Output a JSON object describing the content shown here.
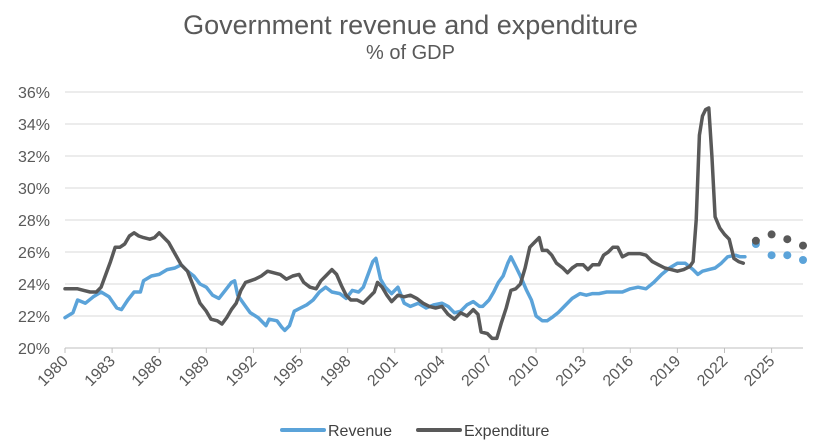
{
  "chart_data": {
    "type": "line",
    "title": "Government revenue and expenditure",
    "subtitle": "% of GDP",
    "xlabel": "",
    "ylabel": "",
    "xlim": [
      1980,
      2027
    ],
    "ylim": [
      20,
      36
    ],
    "x_ticks": [
      "1980",
      "1983",
      "1986",
      "1989",
      "1992",
      "1995",
      "1998",
      "2001",
      "2004",
      "2007",
      "2010",
      "2013",
      "2016",
      "2019",
      "2022",
      "2025"
    ],
    "y_ticks": [
      "20%",
      "22%",
      "24%",
      "26%",
      "28%",
      "30%",
      "32%",
      "34%",
      "36%"
    ],
    "grid": "horizontal",
    "legend_position": "bottom",
    "series": [
      {
        "name": "Revenue",
        "color": "#5ba3d9",
        "points": [
          [
            1980,
            21.9
          ],
          [
            1980.5,
            22.2
          ],
          [
            1980.8,
            23.0
          ],
          [
            1981.3,
            22.8
          ],
          [
            1981.8,
            23.2
          ],
          [
            1982.3,
            23.5
          ],
          [
            1982.8,
            23.2
          ],
          [
            1983.3,
            22.5
          ],
          [
            1983.6,
            22.4
          ],
          [
            1984.0,
            23.0
          ],
          [
            1984.4,
            23.5
          ],
          [
            1984.8,
            23.5
          ],
          [
            1985.0,
            24.2
          ],
          [
            1985.5,
            24.5
          ],
          [
            1986.0,
            24.6
          ],
          [
            1986.5,
            24.9
          ],
          [
            1987.0,
            25.0
          ],
          [
            1987.4,
            25.2
          ],
          [
            1987.8,
            24.8
          ],
          [
            1988.2,
            24.5
          ],
          [
            1988.6,
            24.0
          ],
          [
            1989.0,
            23.8
          ],
          [
            1989.4,
            23.3
          ],
          [
            1989.8,
            23.1
          ],
          [
            1990.2,
            23.6
          ],
          [
            1990.6,
            24.1
          ],
          [
            1990.8,
            24.2
          ],
          [
            1991.0,
            23.3
          ],
          [
            1991.5,
            22.6
          ],
          [
            1991.8,
            22.2
          ],
          [
            1992.3,
            21.9
          ],
          [
            1992.8,
            21.4
          ],
          [
            1993.0,
            21.8
          ],
          [
            1993.5,
            21.7
          ],
          [
            1993.8,
            21.3
          ],
          [
            1994.0,
            21.1
          ],
          [
            1994.3,
            21.4
          ],
          [
            1994.6,
            22.3
          ],
          [
            1995.0,
            22.5
          ],
          [
            1995.4,
            22.7
          ],
          [
            1995.8,
            23.0
          ],
          [
            1996.2,
            23.5
          ],
          [
            1996.6,
            23.8
          ],
          [
            1997.0,
            23.5
          ],
          [
            1997.5,
            23.4
          ],
          [
            1997.9,
            23.1
          ],
          [
            1998.3,
            23.6
          ],
          [
            1998.7,
            23.5
          ],
          [
            1999.0,
            23.8
          ],
          [
            1999.3,
            24.6
          ],
          [
            1999.6,
            25.4
          ],
          [
            1999.8,
            25.6
          ],
          [
            2000.1,
            24.3
          ],
          [
            2000.4,
            23.8
          ],
          [
            2000.8,
            23.4
          ],
          [
            2001.2,
            23.8
          ],
          [
            2001.6,
            22.8
          ],
          [
            2002.0,
            22.6
          ],
          [
            2002.5,
            22.8
          ],
          [
            2003.0,
            22.5
          ],
          [
            2003.5,
            22.7
          ],
          [
            2004.0,
            22.8
          ],
          [
            2004.4,
            22.6
          ],
          [
            2004.8,
            22.2
          ],
          [
            2005.2,
            22.3
          ],
          [
            2005.6,
            22.7
          ],
          [
            2006.0,
            22.9
          ],
          [
            2006.4,
            22.6
          ],
          [
            2006.6,
            22.6
          ],
          [
            2007.0,
            23.0
          ],
          [
            2007.3,
            23.5
          ],
          [
            2007.6,
            24.1
          ],
          [
            2007.9,
            24.5
          ],
          [
            2008.2,
            25.3
          ],
          [
            2008.4,
            25.7
          ],
          [
            2008.7,
            25.1
          ],
          [
            2009.0,
            24.5
          ],
          [
            2009.4,
            23.6
          ],
          [
            2009.7,
            23.0
          ],
          [
            2010.0,
            22.0
          ],
          [
            2010.4,
            21.7
          ],
          [
            2010.7,
            21.7
          ],
          [
            2011.0,
            21.9
          ],
          [
            2011.4,
            22.2
          ],
          [
            2011.8,
            22.6
          ],
          [
            2012.3,
            23.1
          ],
          [
            2012.8,
            23.4
          ],
          [
            2013.2,
            23.3
          ],
          [
            2013.6,
            23.4
          ],
          [
            2014.0,
            23.4
          ],
          [
            2014.5,
            23.5
          ],
          [
            2015.0,
            23.5
          ],
          [
            2015.5,
            23.5
          ],
          [
            2016.0,
            23.7
          ],
          [
            2016.5,
            23.8
          ],
          [
            2017.0,
            23.7
          ],
          [
            2017.5,
            24.1
          ],
          [
            2018.0,
            24.6
          ],
          [
            2018.5,
            25.0
          ],
          [
            2019.0,
            25.3
          ],
          [
            2019.5,
            25.3
          ],
          [
            2020.0,
            24.9
          ],
          [
            2020.3,
            24.6
          ],
          [
            2020.6,
            24.8
          ],
          [
            2021.0,
            24.9
          ],
          [
            2021.4,
            25.0
          ],
          [
            2021.8,
            25.3
          ],
          [
            2022.2,
            25.7
          ],
          [
            2022.7,
            25.8
          ],
          [
            2023.0,
            25.7
          ],
          [
            2023.3,
            25.7
          ]
        ],
        "forecast": [
          [
            2024,
            26.5
          ],
          [
            2025,
            25.8
          ],
          [
            2026,
            25.8
          ],
          [
            2027,
            25.5
          ]
        ]
      },
      {
        "name": "Expenditure",
        "color": "#595959",
        "points": [
          [
            1980,
            23.7
          ],
          [
            1980.5,
            23.7
          ],
          [
            1980.8,
            23.7
          ],
          [
            1981.2,
            23.6
          ],
          [
            1981.6,
            23.5
          ],
          [
            1982.0,
            23.5
          ],
          [
            1982.3,
            23.8
          ],
          [
            1982.6,
            24.6
          ],
          [
            1982.9,
            25.4
          ],
          [
            1983.2,
            26.3
          ],
          [
            1983.5,
            26.3
          ],
          [
            1983.8,
            26.5
          ],
          [
            1984.1,
            27.0
          ],
          [
            1984.4,
            27.2
          ],
          [
            1984.7,
            27.0
          ],
          [
            1985.0,
            26.9
          ],
          [
            1985.4,
            26.8
          ],
          [
            1985.7,
            26.9
          ],
          [
            1986.0,
            27.2
          ],
          [
            1986.3,
            26.9
          ],
          [
            1986.6,
            26.6
          ],
          [
            1987.0,
            25.9
          ],
          [
            1987.4,
            25.2
          ],
          [
            1987.8,
            24.8
          ],
          [
            1988.2,
            23.8
          ],
          [
            1988.6,
            22.8
          ],
          [
            1989.0,
            22.3
          ],
          [
            1989.3,
            21.8
          ],
          [
            1989.7,
            21.7
          ],
          [
            1990.0,
            21.5
          ],
          [
            1990.3,
            21.9
          ],
          [
            1990.6,
            22.4
          ],
          [
            1990.9,
            22.8
          ],
          [
            1991.2,
            23.6
          ],
          [
            1991.5,
            24.1
          ],
          [
            1991.8,
            24.2
          ],
          [
            1992.1,
            24.3
          ],
          [
            1992.5,
            24.5
          ],
          [
            1992.9,
            24.8
          ],
          [
            1993.3,
            24.7
          ],
          [
            1993.7,
            24.6
          ],
          [
            1994.1,
            24.3
          ],
          [
            1994.5,
            24.5
          ],
          [
            1994.9,
            24.6
          ],
          [
            1995.2,
            24.1
          ],
          [
            1995.6,
            23.8
          ],
          [
            1996.0,
            23.7
          ],
          [
            1996.3,
            24.2
          ],
          [
            1996.6,
            24.5
          ],
          [
            1997.0,
            24.9
          ],
          [
            1997.3,
            24.6
          ],
          [
            1997.6,
            23.9
          ],
          [
            1997.9,
            23.3
          ],
          [
            1998.2,
            23.0
          ],
          [
            1998.6,
            23.0
          ],
          [
            1999.0,
            22.8
          ],
          [
            1999.4,
            23.2
          ],
          [
            1999.7,
            23.5
          ],
          [
            1999.9,
            24.1
          ],
          [
            2000.2,
            23.8
          ],
          [
            2000.5,
            23.3
          ],
          [
            2000.8,
            22.9
          ],
          [
            2001.2,
            23.3
          ],
          [
            2001.6,
            23.2
          ],
          [
            2002.0,
            23.3
          ],
          [
            2002.4,
            23.1
          ],
          [
            2002.8,
            22.8
          ],
          [
            2003.2,
            22.6
          ],
          [
            2003.6,
            22.5
          ],
          [
            2004.0,
            22.6
          ],
          [
            2004.4,
            22.1
          ],
          [
            2004.8,
            21.8
          ],
          [
            2005.2,
            22.2
          ],
          [
            2005.6,
            22.0
          ],
          [
            2006.0,
            22.4
          ],
          [
            2006.3,
            22.1
          ],
          [
            2006.5,
            21.0
          ],
          [
            2006.9,
            20.9
          ],
          [
            2007.2,
            20.6
          ],
          [
            2007.5,
            20.6
          ],
          [
            2007.8,
            21.6
          ],
          [
            2008.1,
            22.5
          ],
          [
            2008.4,
            23.6
          ],
          [
            2008.7,
            23.7
          ],
          [
            2009.0,
            24.0
          ],
          [
            2009.3,
            25.0
          ],
          [
            2009.6,
            26.3
          ],
          [
            2009.9,
            26.6
          ],
          [
            2010.2,
            26.9
          ],
          [
            2010.4,
            26.1
          ],
          [
            2010.7,
            26.1
          ],
          [
            2011.0,
            25.8
          ],
          [
            2011.3,
            25.3
          ],
          [
            2011.7,
            25.0
          ],
          [
            2012.0,
            24.7
          ],
          [
            2012.3,
            25.0
          ],
          [
            2012.6,
            25.2
          ],
          [
            2013.0,
            25.2
          ],
          [
            2013.3,
            24.9
          ],
          [
            2013.6,
            25.2
          ],
          [
            2014.0,
            25.2
          ],
          [
            2014.3,
            25.8
          ],
          [
            2014.6,
            26.0
          ],
          [
            2014.9,
            26.3
          ],
          [
            2015.2,
            26.3
          ],
          [
            2015.5,
            25.7
          ],
          [
            2015.9,
            25.9
          ],
          [
            2016.2,
            25.9
          ],
          [
            2016.6,
            25.9
          ],
          [
            2017.0,
            25.8
          ],
          [
            2017.4,
            25.4
          ],
          [
            2017.8,
            25.2
          ],
          [
            2018.2,
            25.0
          ],
          [
            2018.6,
            24.9
          ],
          [
            2019.0,
            24.8
          ],
          [
            2019.4,
            24.9
          ],
          [
            2019.8,
            25.1
          ],
          [
            2020.0,
            25.4
          ],
          [
            2020.2,
            28.0
          ],
          [
            2020.4,
            33.3
          ],
          [
            2020.6,
            34.5
          ],
          [
            2020.8,
            34.9
          ],
          [
            2021.0,
            35.0
          ],
          [
            2021.2,
            32.0
          ],
          [
            2021.4,
            28.2
          ],
          [
            2021.7,
            27.5
          ],
          [
            2022.0,
            27.1
          ],
          [
            2022.3,
            26.8
          ],
          [
            2022.6,
            25.6
          ],
          [
            2022.9,
            25.4
          ],
          [
            2023.2,
            25.3
          ]
        ],
        "forecast": [
          [
            2024,
            26.7
          ],
          [
            2025,
            27.1
          ],
          [
            2026,
            26.8
          ],
          [
            2027,
            26.4
          ]
        ]
      }
    ]
  }
}
